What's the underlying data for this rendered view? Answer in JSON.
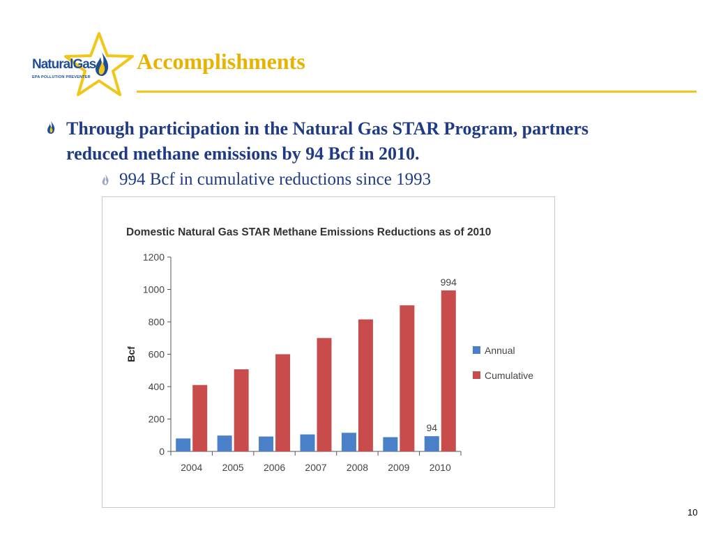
{
  "slide": {
    "title": "Accomplishments",
    "bullet1": "Through participation in the Natural Gas STAR Program, partners reduced methane emissions by 94 Bcf in 2010.",
    "bullet2": "994 Bcf in cumulative reductions since 1993",
    "page_number": "10"
  },
  "logo": {
    "name": "NaturalGas",
    "tagline": "EPA POLLUTION PREVENTER",
    "icons": [
      "star-icon",
      "flame-icon"
    ]
  },
  "colors": {
    "title": "#e8b300",
    "body_text": "#1f3b86",
    "annual": "#4a80c8",
    "cumulative": "#c94c4c",
    "rule": "#f2c618"
  },
  "chart_data": {
    "type": "bar",
    "title": "Domestic Natural Gas STAR Methane Emissions Reductions as of 2010",
    "xlabel": "",
    "ylabel": "Bcf",
    "categories": [
      "2004",
      "2005",
      "2006",
      "2007",
      "2008",
      "2009",
      "2010"
    ],
    "series": [
      {
        "name": "Annual",
        "values": [
          80,
          98,
          92,
          105,
          115,
          88,
          94
        ]
      },
      {
        "name": "Cumulative",
        "values": [
          410,
          507,
          600,
          700,
          815,
          902,
          994
        ]
      }
    ],
    "ylim": [
      0,
      1200
    ],
    "yticks": [
      0,
      200,
      400,
      600,
      800,
      1000,
      1200
    ],
    "annotations": [
      {
        "series": "Annual",
        "category": "2010",
        "text": "94"
      },
      {
        "series": "Cumulative",
        "category": "2010",
        "text": "994"
      }
    ],
    "grid": false,
    "legend_position": "right"
  }
}
